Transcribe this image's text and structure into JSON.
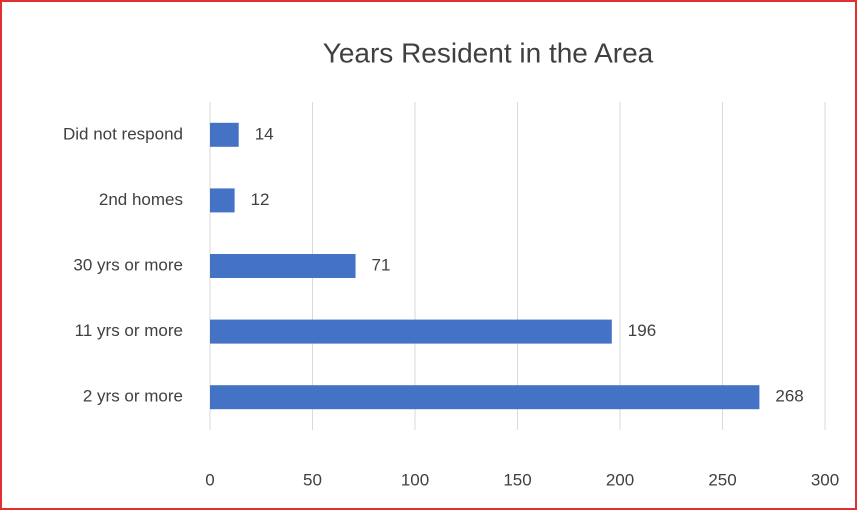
{
  "chart_data": {
    "type": "bar",
    "orientation": "horizontal",
    "title": "Years Resident in the Area",
    "categories": [
      "Did not respond",
      "2nd homes",
      "30 yrs or more",
      "11 yrs or more",
      "2 yrs or more"
    ],
    "values": [
      14,
      12,
      71,
      196,
      268
    ],
    "color": "#4472c4",
    "xlim": [
      0,
      300
    ],
    "xticks": [
      0,
      50,
      100,
      150,
      200,
      250,
      300
    ],
    "grid": true
  }
}
